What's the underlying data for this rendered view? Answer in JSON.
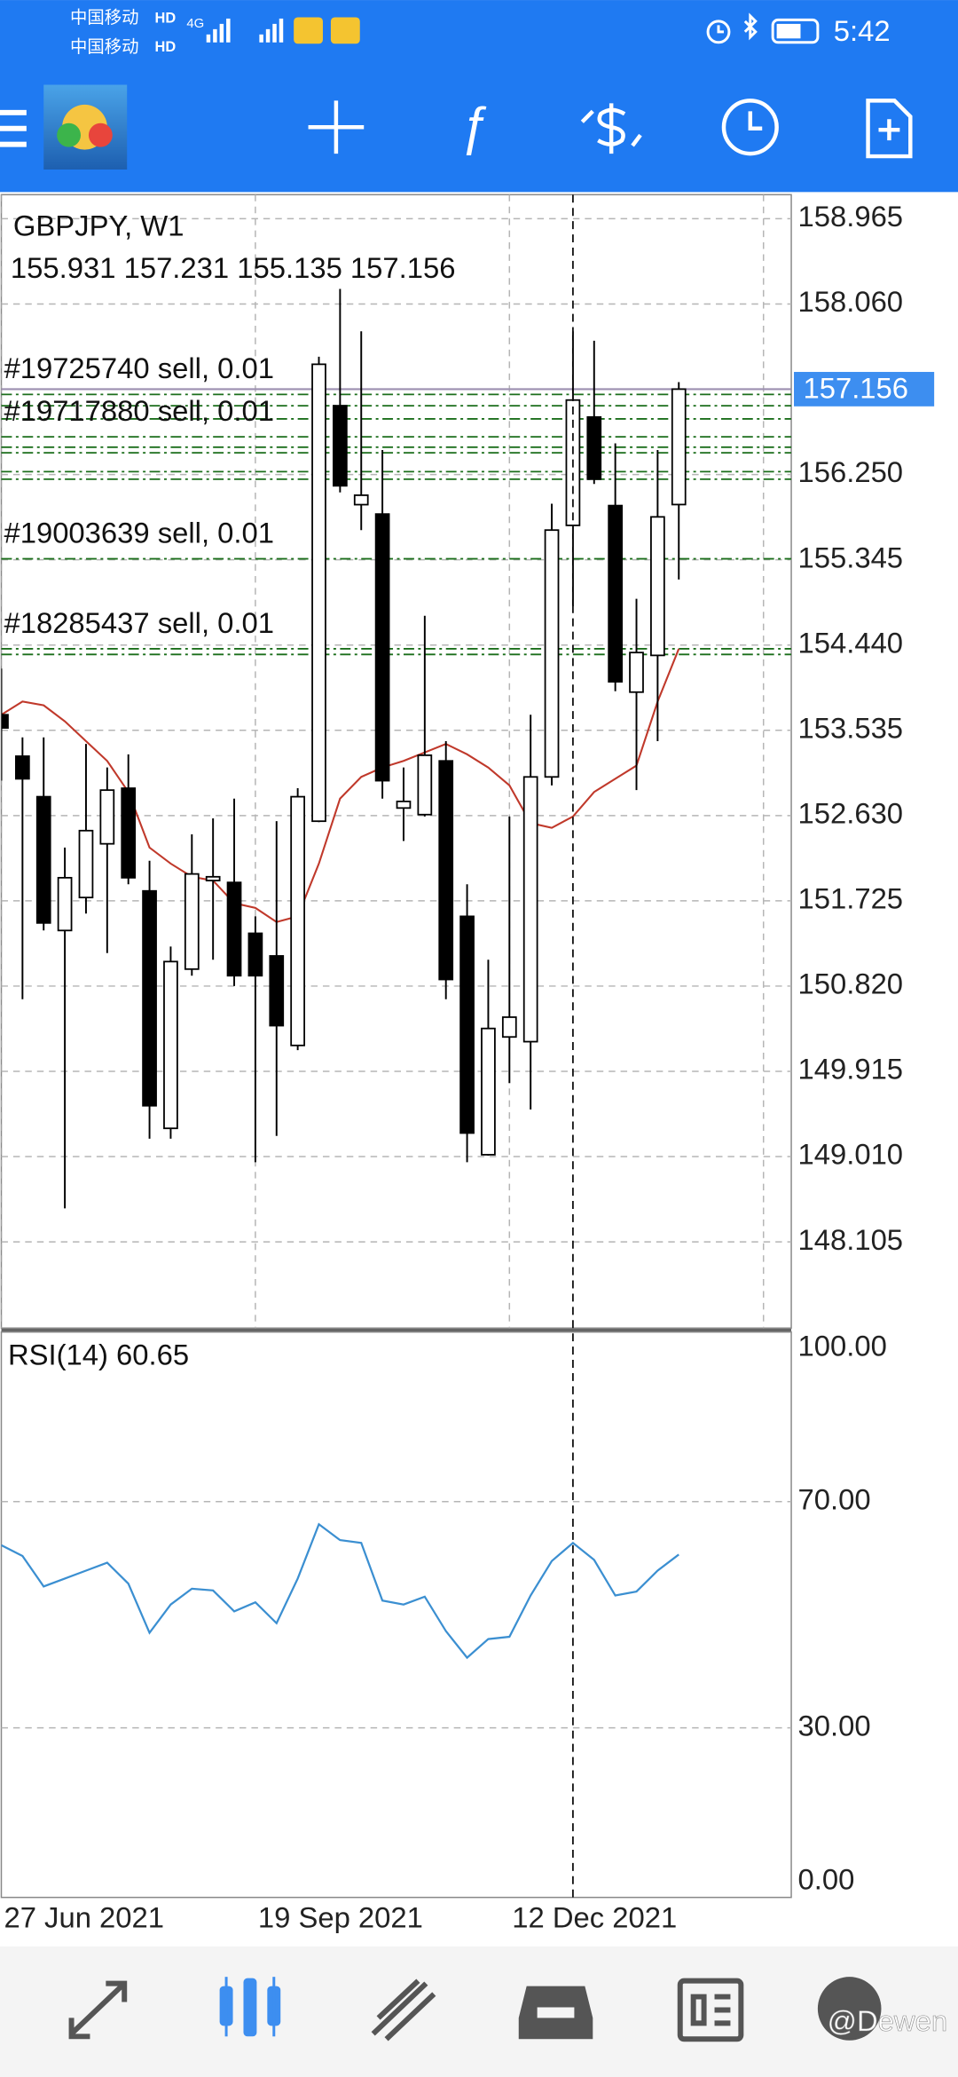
{
  "status_bar": {
    "carrier_1": "中国移动",
    "carrier_2": "中国移动",
    "hd": "HD",
    "network": "4G",
    "time": "5:42"
  },
  "chart_data": [
    {
      "type": "candlestick",
      "title": "GBPJPY, W1",
      "ohlc_header": "155.931 157.231 155.135 157.156",
      "categories": [
        "27 Jun 2021",
        null,
        null,
        null,
        null,
        null,
        null,
        null,
        null,
        null,
        null,
        null,
        "19 Sep 2021",
        null,
        null,
        null,
        null,
        null,
        null,
        null,
        null,
        null,
        null,
        null,
        "12 Dec 2021",
        null,
        null,
        null,
        null,
        null,
        null,
        null,
        null
      ],
      "open": [
        153.7,
        153.26,
        152.83,
        151.41,
        151.76,
        152.33,
        152.92,
        151.83,
        149.31,
        151.0,
        151.94,
        151.92,
        151.38,
        151.14,
        150.19,
        152.57,
        156.98,
        155.93,
        155.83,
        152.71,
        152.64,
        153.21,
        151.56,
        149.03,
        150.28,
        150.23,
        153.04,
        155.71,
        156.86,
        155.92,
        153.94,
        154.33,
        155.931
      ],
      "high": [
        154.19,
        153.46,
        153.46,
        152.29,
        153.39,
        153.14,
        153.28,
        152.15,
        151.24,
        152.43,
        152.6,
        152.81,
        151.56,
        152.57,
        152.92,
        157.5,
        158.22,
        157.77,
        156.51,
        153.14,
        154.75,
        153.42,
        151.9,
        151.1,
        152.62,
        153.7,
        155.94,
        157.77,
        157.67,
        156.58,
        154.93,
        156.51,
        157.231
      ],
      "low": [
        153.0,
        150.68,
        151.41,
        148.46,
        151.59,
        151.17,
        151.9,
        149.2,
        149.2,
        150.93,
        151.1,
        150.82,
        148.95,
        149.23,
        150.14,
        152.56,
        156.06,
        155.66,
        152.81,
        152.36,
        152.62,
        150.68,
        148.95,
        149.02,
        149.79,
        149.51,
        152.95,
        154.85,
        156.15,
        153.95,
        152.9,
        153.42,
        155.135
      ],
      "close": [
        153.56,
        153.02,
        151.49,
        151.97,
        152.47,
        152.9,
        151.97,
        149.55,
        151.08,
        152.01,
        151.98,
        150.93,
        150.93,
        150.4,
        152.83,
        157.42,
        156.13,
        156.03,
        153.0,
        152.78,
        153.27,
        150.89,
        149.26,
        150.37,
        150.49,
        153.04,
        155.66,
        157.04,
        156.2,
        154.05,
        154.36,
        155.8,
        157.156
      ],
      "up_color": "#ffffff",
      "down_color": "#000000",
      "moving_average": {
        "color": "#c0392b",
        "values": [
          153.7,
          153.84,
          153.8,
          153.63,
          153.42,
          153.21,
          152.88,
          152.29,
          152.12,
          151.98,
          151.94,
          151.7,
          151.65,
          151.5,
          151.56,
          152.12,
          152.81,
          153.04,
          153.14,
          153.21,
          153.3,
          153.39,
          153.28,
          153.14,
          152.95,
          152.55,
          152.5,
          152.62,
          152.88,
          153.02,
          153.16,
          153.84,
          154.4
        ]
      },
      "orders": [
        {
          "label": "#19725740 sell, 0.01",
          "price": 157.1
        },
        {
          "price": 156.98
        },
        {
          "price": 156.84
        },
        {
          "label": "#19717880 sell, 0.01",
          "price": 156.65
        },
        {
          "price": 156.54
        },
        {
          "price": 156.48
        },
        {
          "price": 156.28
        },
        {
          "price": 156.2
        },
        {
          "label": "#19003639 sell, 0.01",
          "price": 155.355
        },
        {
          "label": "#18285437 sell, 0.01",
          "price": 154.4
        },
        {
          "price": 154.34
        }
      ],
      "order_color": "#1b6e1b",
      "current_price": 157.156,
      "current_price_color": "#3d8ef0",
      "ylim": [
        147.19,
        159.22
      ],
      "yticks": [
        158.965,
        {
          "value": 158.06,
          "label": "158.060"
        },
        {
          "value": 156.25,
          "label": "156.250"
        },
        155.345,
        {
          "value": 154.44,
          "label": "154.440"
        },
        153.535,
        {
          "value": 152.63,
          "label": "152.630"
        },
        151.725,
        {
          "value": 150.82,
          "label": "150.820"
        },
        149.915,
        {
          "value": 149.01,
          "label": "149.010"
        },
        148.105
      ],
      "grid": true
    },
    {
      "type": "line",
      "title": "RSI(14) 60.65",
      "color": "#3b8fd1",
      "values": [
        62.3,
        60.4,
        55.0,
        56.4,
        57.8,
        59.2,
        55.5,
        46.8,
        51.8,
        54.6,
        54.3,
        50.6,
        52.2,
        48.5,
        56.4,
        66.0,
        63.2,
        62.7,
        52.5,
        51.8,
        53.2,
        47.1,
        42.4,
        45.7,
        46.1,
        53.4,
        59.5,
        62.7,
        59.7,
        53.4,
        54.1,
        57.8,
        60.65
      ],
      "ylim": [
        0,
        100
      ],
      "yticks": [
        {
          "value": 100,
          "label": "100.00"
        },
        {
          "value": 70,
          "label": "70.00"
        },
        {
          "value": 30,
          "label": "30.00"
        },
        {
          "value": 0,
          "label": "0.00"
        }
      ],
      "grid": true
    }
  ],
  "watermark": "@Dewen"
}
